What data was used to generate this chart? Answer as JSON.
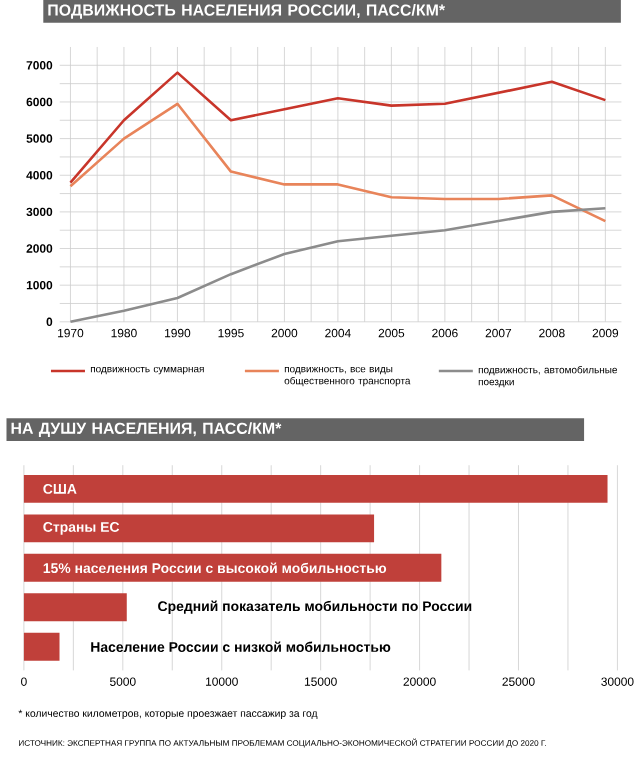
{
  "chart_data": [
    {
      "type": "line",
      "title": "ПОДВИЖНОСТЬ НАСЕЛЕНИЯ РОССИИ, ПАСС/КМ*",
      "categories": [
        "1970",
        "1980",
        "1990",
        "1995",
        "2000",
        "2004",
        "2005",
        "2006",
        "2007",
        "2008",
        "2009"
      ],
      "series": [
        {
          "name": "подвижность суммарная",
          "color": "#c8352a",
          "values": [
            3800,
            5500,
            6800,
            5500,
            5800,
            6100,
            5900,
            5950,
            6250,
            6550,
            6050
          ]
        },
        {
          "name": "подвижность, все виды общественного транспорта",
          "color": "#e8845a",
          "values": [
            3700,
            5000,
            5950,
            4100,
            3750,
            3750,
            3400,
            3350,
            3350,
            3450,
            2750
          ]
        },
        {
          "name": "подвижность, автомобильные поездки",
          "color": "#8c8c8c",
          "values": [
            0,
            300,
            650,
            1300,
            1850,
            2200,
            2350,
            2500,
            2750,
            3000,
            3100
          ]
        }
      ],
      "ylim": [
        0,
        7500
      ],
      "yticks": [
        0,
        1000,
        2000,
        3000,
        4000,
        5000,
        6000,
        7000
      ],
      "grid": true,
      "legend": "bottom",
      "marker": "none"
    },
    {
      "type": "bar",
      "orientation": "horizontal",
      "title": "НА ДУШУ НАСЕЛЕНИЯ, ПАСС/КМ*",
      "categories": [
        "США",
        "Страны ЕС",
        "15% населения России с высокой мобильностью",
        "Средний показатель мобильности по России",
        "Население России с низкой мобильностью"
      ],
      "values": [
        29500,
        17700,
        21100,
        5200,
        1800
      ],
      "color": "#c0403a",
      "xlim": [
        0,
        30000
      ],
      "xticks": [
        0,
        5000,
        10000,
        15000,
        20000,
        25000,
        30000
      ],
      "grid": "x",
      "tick_labels": "x",
      "annotations": [
        "* количество километров, которые проезжает пассажир за год",
        "ИСТОЧНИК: ЭКСПЕРТНАЯ ГРУППА ПО АКТУАЛЬНЫМ ПРОБЛЕМАМ СОЦИАЛЬНО-ЭКОНОМИЧЕСКОЙ СТРАТЕГИИ РОССИИ ДО 2020 Г."
      ]
    }
  ]
}
